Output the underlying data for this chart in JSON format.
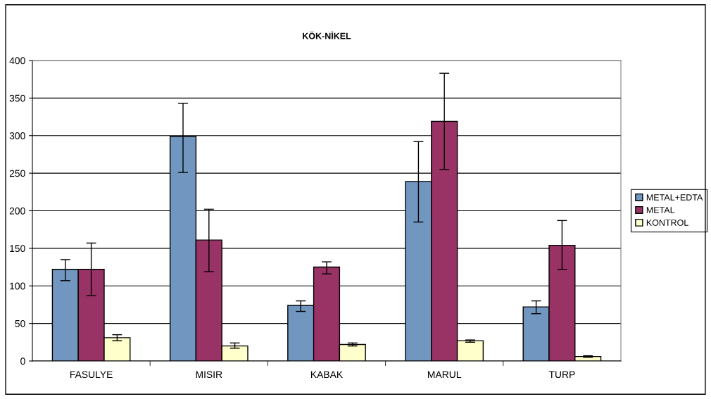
{
  "chart_data": {
    "type": "bar",
    "title": "KÖK-NİKEL",
    "categories": [
      "FASULYE",
      "MISIR",
      "KABAK",
      "MARUL",
      "TURP"
    ],
    "series": [
      {
        "name": "METAL+EDTA",
        "color": "#7196c0",
        "values": [
          122,
          299,
          74,
          239,
          72
        ],
        "errors": [
          [
            107,
            135
          ],
          [
            251,
            343
          ],
          [
            66,
            80
          ],
          [
            185,
            292
          ],
          [
            63,
            80
          ]
        ]
      },
      {
        "name": "METAL",
        "color": "#993366",
        "values": [
          122,
          161,
          125,
          319,
          154
        ],
        "errors": [
          [
            87,
            157
          ],
          [
            119,
            202
          ],
          [
            116,
            132
          ],
          [
            255,
            383
          ],
          [
            122,
            187
          ]
        ]
      },
      {
        "name": "KONTROL",
        "color": "#ffffcc",
        "values": [
          31,
          20,
          22,
          27,
          6
        ],
        "errors": [
          [
            27,
            35
          ],
          [
            17,
            24
          ],
          [
            20,
            24
          ],
          [
            25,
            28
          ],
          [
            5,
            7
          ]
        ]
      }
    ],
    "ylim": [
      0,
      400
    ],
    "yticks": [
      0,
      50,
      100,
      150,
      200,
      250,
      300,
      350,
      400
    ],
    "grid": "y",
    "legend": "right"
  }
}
